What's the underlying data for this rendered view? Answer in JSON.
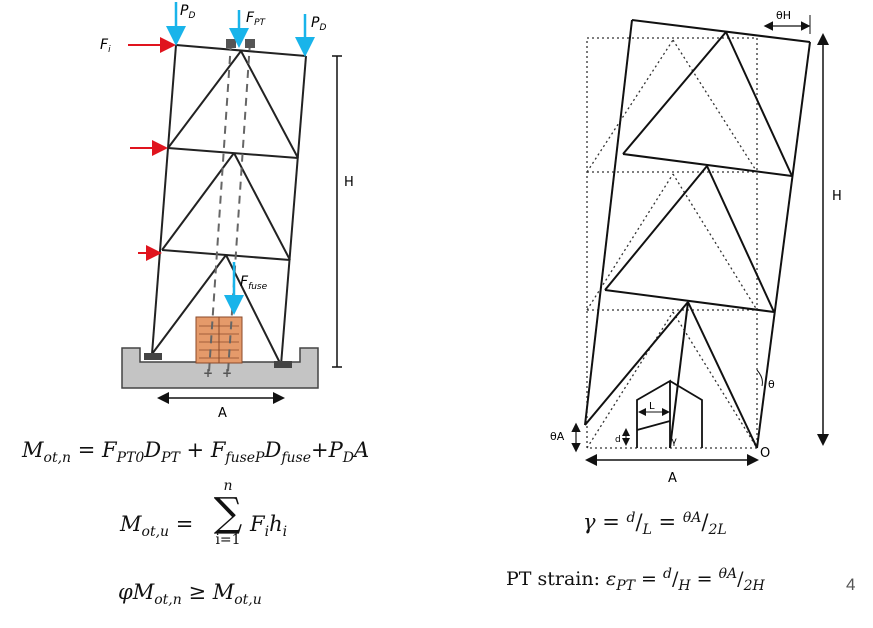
{
  "left_figure": {
    "labels": {
      "pd_left": "P",
      "pd_left_sub": "D",
      "fpt": "F",
      "fpt_sub": "PT",
      "pd_right": "P",
      "pd_right_sub": "D",
      "fi": "F",
      "fi_sub": "i",
      "ffuse": "F",
      "ffuse_sub": "fuse",
      "h": "H",
      "a": "A"
    },
    "colors": {
      "load_arrow": "#19b4ea",
      "lateral_arrow": "#e0141e",
      "fuse": "#e59a6a",
      "ground": "#c4c4c4"
    }
  },
  "right_figure": {
    "labels": {
      "theta_h": "θH",
      "h": "H",
      "theta": "θ",
      "theta_a": "θA",
      "a": "A",
      "o": "O",
      "l": "L",
      "d": "d",
      "gamma": "γ"
    }
  },
  "equations": {
    "mot_n": {
      "lhs": "M",
      "lhs_sub": "ot,n",
      "eq": " = ",
      "t1": "F",
      "t1_sub": "PT0",
      "t1b": "D",
      "t1b_sub": "PT",
      "plus1": " + ",
      "t2": "F",
      "t2_sub": "fuseP",
      "t2b": "D",
      "t2b_sub": "fuse",
      "plus2": "+",
      "t3": "P",
      "t3_sub": "D",
      "t3b": "A"
    },
    "mot_u": {
      "lhs": "M",
      "lhs_sub": "ot,u",
      "eq": " = ",
      "sum_top": "n",
      "sum_sym": "∑",
      "sum_bottom": "i=1",
      "t1": "F",
      "t1_sub": "i",
      "t2": "h",
      "t2_sub": "i"
    },
    "phi": {
      "phi": "φ",
      "m1": "M",
      "m1_sub": "ot,n",
      "ge": " ≥ ",
      "m2": "M",
      "m2_sub": "ot,u"
    },
    "gamma": {
      "g": "γ",
      "eq1": " = ",
      "d": "d",
      "slash1": "/",
      "l": "L",
      "eq2": " = ",
      "num": "θA",
      "slash2": "/",
      "den": "2L"
    },
    "pt_strain": {
      "label": "PT strain: ",
      "eps": "ε",
      "eps_sub": "PT",
      "eq1": " = ",
      "d": "d",
      "slash1": "/",
      "h": "H",
      "eq2": " = ",
      "num": "θA",
      "slash2": "/",
      "den": "2H"
    }
  },
  "page_number": "4"
}
